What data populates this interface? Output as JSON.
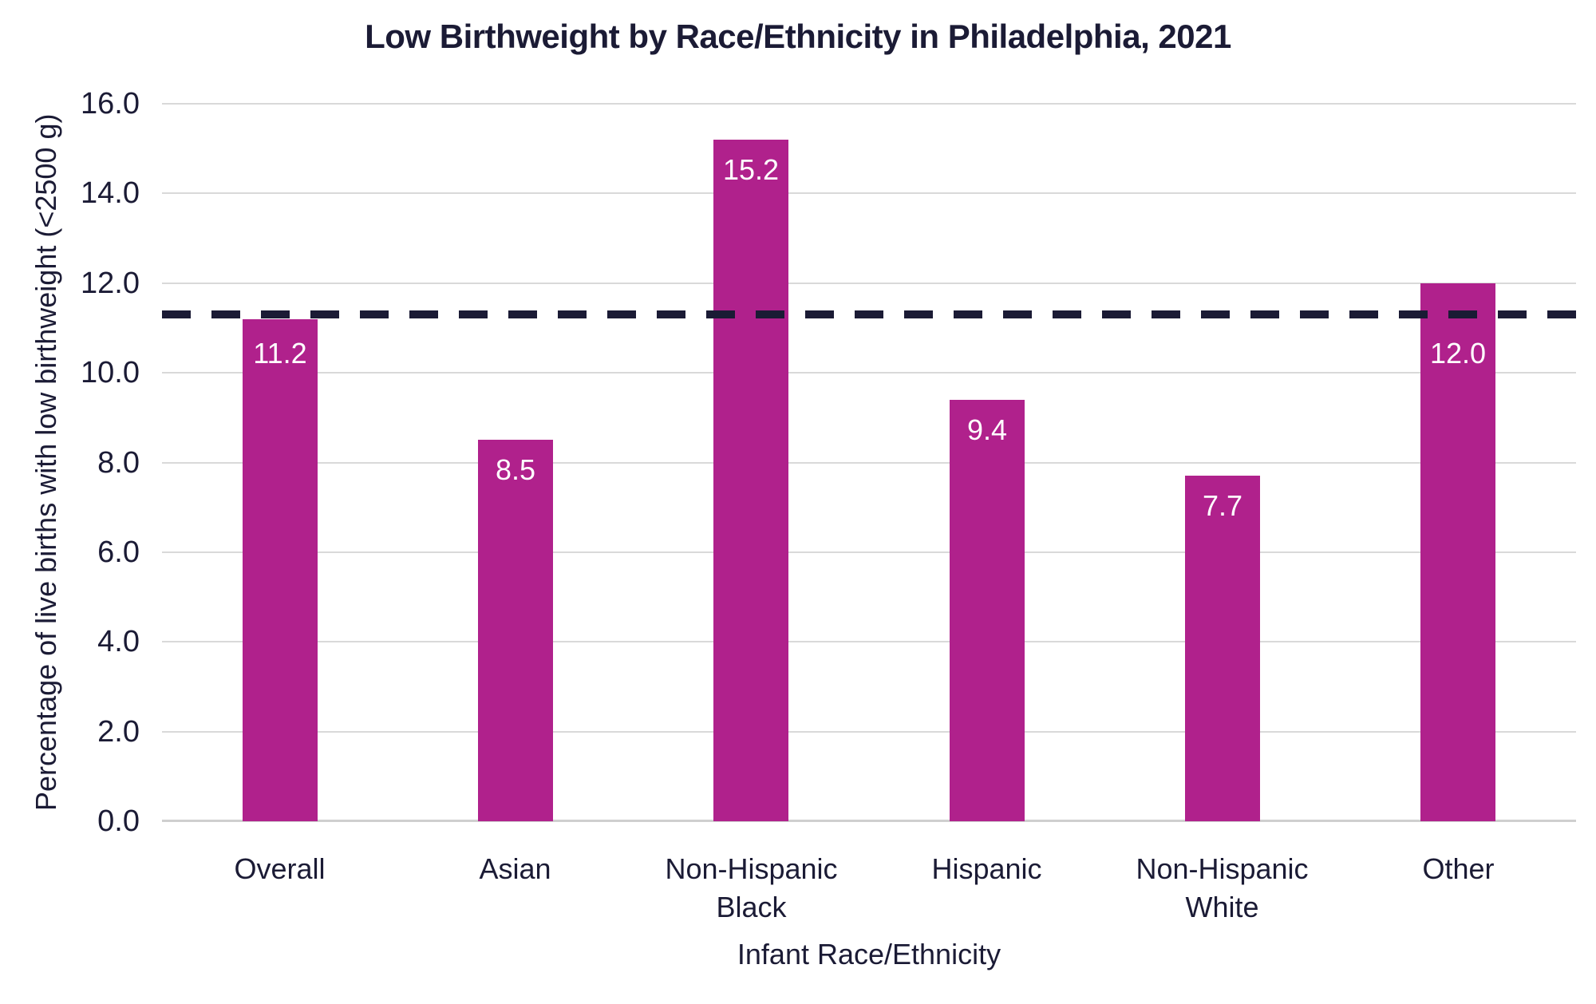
{
  "chart_data": {
    "type": "bar",
    "title": "Low Birthweight by Race/Ethnicity in Philadelphia, 2021",
    "xlabel": "Infant Race/Ethnicity",
    "ylabel": "Percentage of live births with low birthweight (<2500 g)",
    "categories": [
      "Overall",
      "Asian",
      "Non-Hispanic Black",
      "Hispanic",
      "Non-Hispanic White",
      "Other"
    ],
    "category_lines": [
      [
        "Overall"
      ],
      [
        "Asian"
      ],
      [
        "Non-Hispanic",
        "Black"
      ],
      [
        "Hispanic"
      ],
      [
        "Non-Hispanic",
        "White"
      ],
      [
        "Other"
      ]
    ],
    "values": [
      11.2,
      8.5,
      15.2,
      9.4,
      7.7,
      12.0
    ],
    "value_labels": [
      "11.2",
      "8.5",
      "15.2",
      "9.4",
      "7.7",
      "12.0"
    ],
    "ylim": [
      0,
      16
    ],
    "ytick_values": [
      0,
      2,
      4,
      6,
      8,
      10,
      12,
      14,
      16
    ],
    "ytick_labels": [
      "0.0",
      "2.0",
      "4.0",
      "6.0",
      "8.0",
      "10.0",
      "12.0",
      "14.0",
      "16.0"
    ],
    "grid": "horizontal",
    "legend": "none",
    "reference_line": {
      "value": 11.3,
      "style": "dashed"
    },
    "colors": {
      "bar": "#b0218c",
      "text": "#1b1b35",
      "grid": "#d9d9d9",
      "baseline": "#cfcfcf",
      "value_label": "#ffffff",
      "reference_line": "#1b1b35",
      "background": "#ffffff"
    }
  }
}
